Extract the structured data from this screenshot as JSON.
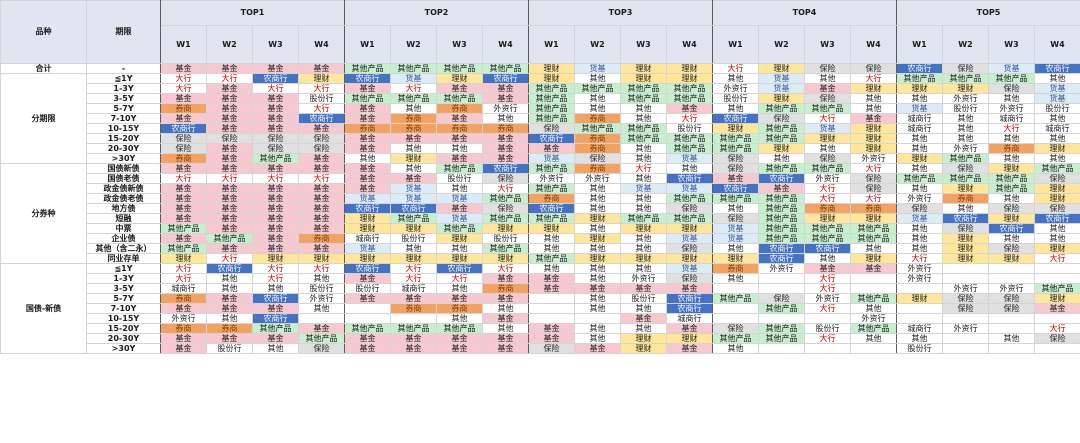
{
  "header": {
    "variety_label": "品种",
    "term_label": "期限",
    "top_labels": [
      "TOP1",
      "TOP2",
      "TOP3",
      "TOP4",
      "TOP5"
    ],
    "week_labels": [
      "W1",
      "W2",
      "W3",
      "W4"
    ]
  },
  "colors": {
    "基金": "#f7c8d0",
    "大行": "#ffffff",
    "农商行": "#4472c4",
    "理财": "#ffe699",
    "其他产品": "#c6efce",
    "货基": "#ddebf7",
    "券商": "#f4a261",
    "保险": "#e0e0e0",
    "其他": "#ffffff",
    "股份行": "#ffffff",
    "城商行": "#ffffff",
    "外资行": "#ffffff"
  },
  "text_colors": {
    "大行": "#c00000",
    "农商行": "#ffffff",
    "货基": "#2f5597",
    "券商": "#7a3b00"
  },
  "groups": [
    {
      "label": "合计",
      "rows": [
        {
          "term": "-",
          "cells": [
            "基金",
            "基金",
            "基金",
            "基金",
            "其他产品",
            "其他产品",
            "其他产品",
            "其他产品",
            "理财",
            "货基",
            "理财",
            "理财",
            "大行",
            "理财",
            "保险",
            "保险",
            "农商行",
            "保险",
            "货基",
            "农商行"
          ]
        }
      ]
    },
    {
      "label": "分期限",
      "rows": [
        {
          "term": "≦1Y",
          "cells": [
            "大行",
            "大行",
            "农商行",
            "理财",
            "农商行",
            "货基",
            "理财",
            "农商行",
            "理财",
            "其他",
            "理财",
            "理财",
            "其他",
            "货基",
            "其他",
            "大行",
            "其他产品",
            "其他产品",
            "其他产品",
            "其他"
          ]
        },
        {
          "term": "1-3Y",
          "cells": [
            "大行",
            "基金",
            "大行",
            "大行",
            "基金",
            "大行",
            "基金",
            "基金",
            "其他产品",
            "其他产品",
            "其他产品",
            "其他产品",
            "外资行",
            "货基",
            "基金",
            "理财",
            "理财",
            "理财",
            "保险",
            "货基"
          ]
        },
        {
          "term": "3-5Y",
          "cells": [
            "基金",
            "基金",
            "基金",
            "股份行",
            "其他产品",
            "其他产品",
            "其他产品",
            "基金",
            "其他产品",
            "其他",
            "其他产品",
            "其他产品",
            "股份行",
            "理财",
            "保险",
            "其他",
            "其他",
            "外资行",
            "其他",
            "货基"
          ]
        },
        {
          "term": "5-7Y",
          "cells": [
            "券商",
            "基金",
            "基金",
            "大行",
            "基金",
            "其他",
            "券商",
            "外资行",
            "其他产品",
            "其他",
            "其他",
            "基金",
            "其他",
            "其他产品",
            "其他产品",
            "其他",
            "货基",
            "股份行",
            "外资行",
            "股份行"
          ]
        },
        {
          "term": "7-10Y",
          "cells": [
            "基金",
            "基金",
            "基金",
            "农商行",
            "基金",
            "券商",
            "基金",
            "其他",
            "其他产品",
            "券商",
            "其他",
            "大行",
            "农商行",
            "保险",
            "大行",
            "基金",
            "城商行",
            "其他",
            "城商行",
            "其他"
          ]
        },
        {
          "term": "10-15Y",
          "cells": [
            "农商行",
            "基金",
            "基金",
            "基金",
            "券商",
            "券商",
            "券商",
            "券商",
            "保险",
            "其他产品",
            "其他产品",
            "股份行",
            "理财",
            "其他产品",
            "货基",
            "理财",
            "城商行",
            "其他",
            "大行",
            "城商行"
          ]
        },
        {
          "term": "15-20Y",
          "cells": [
            "保险",
            "保险",
            "保险",
            "保险",
            "基金",
            "基金",
            "基金",
            "基金",
            "农商行",
            "券商",
            "其他产品",
            "其他产品",
            "其他产品",
            "其他产品",
            "理财",
            "理财",
            "其他",
            "其他",
            "其他",
            "其他"
          ]
        },
        {
          "term": "20-30Y",
          "cells": [
            "保险",
            "基金",
            "保险",
            "保险",
            "基金",
            "其他",
            "其他",
            "基金",
            "基金",
            "券商",
            "其他",
            "其他产品",
            "其他产品",
            "理财",
            "其他",
            "理财",
            "其他",
            "外资行",
            "券商",
            "理财"
          ]
        },
        {
          "term": ">30Y",
          "cells": [
            "券商",
            "基金",
            "其他产品",
            "基金",
            "其他",
            "理财",
            "基金",
            "基金",
            "货基",
            "保险",
            "其他",
            "货基",
            "保险",
            "其他",
            "保险",
            "外资行",
            "理财",
            "其他产品",
            "其他",
            "其他"
          ]
        }
      ]
    },
    {
      "label": "分券种",
      "rows": [
        {
          "term": "国债新债",
          "cells": [
            "基金",
            "基金",
            "基金",
            "基金",
            "基金",
            "其他",
            "其他产品",
            "农商行",
            "其他产品",
            "券商",
            "大行",
            "其他",
            "保险",
            "其他产品",
            "其他产品",
            "大行",
            "其他",
            "保险",
            "理财",
            "其他产品"
          ]
        },
        {
          "term": "国债老债",
          "cells": [
            "大行",
            "大行",
            "大行",
            "大行",
            "基金",
            "基金",
            "股份行",
            "保险",
            "外资行",
            "外资行",
            "其他",
            "农商行",
            "基金",
            "农商行",
            "外资行",
            "保险",
            "其他产品",
            "其他产品",
            "其他产品",
            "保险"
          ]
        },
        {
          "term": "政金债新债",
          "cells": [
            "基金",
            "基金",
            "基金",
            "基金",
            "基金",
            "货基",
            "其他",
            "大行",
            "其他产品",
            "其他",
            "货基",
            "货基",
            "农商行",
            "基金",
            "大行",
            "保险",
            "其他",
            "理财",
            "其他产品",
            "理财"
          ]
        },
        {
          "term": "政金债老债",
          "cells": [
            "基金",
            "基金",
            "基金",
            "基金",
            "货基",
            "货基",
            "货基",
            "其他产品",
            "券商",
            "其他",
            "其他",
            "其他产品",
            "其他产品",
            "其他产品",
            "大行",
            "大行",
            "外资行",
            "券商",
            "其他",
            "理财"
          ]
        },
        {
          "term": "地方债",
          "cells": [
            "基金",
            "基金",
            "基金",
            "基金",
            "农商行",
            "农商行",
            "基金",
            "保险",
            "农商行",
            "其他",
            "其他",
            "保险",
            "其他",
            "其他产品",
            "券商",
            "券商",
            "保险",
            "其他",
            "保险",
            "保险"
          ]
        },
        {
          "term": "短融",
          "cells": [
            "基金",
            "基金",
            "基金",
            "基金",
            "理财",
            "其他产品",
            "货基",
            "其他产品",
            "其他产品",
            "理财",
            "其他产品",
            "其他产品",
            "保险",
            "其他产品",
            "理财",
            "理财",
            "货基",
            "农商行",
            "理财",
            "农商行"
          ]
        },
        {
          "term": "中票",
          "cells": [
            "其他产品",
            "基金",
            "基金",
            "基金",
            "理财",
            "理财",
            "其他产品",
            "理财",
            "理财",
            "其他",
            "理财",
            "理财",
            "货基",
            "其他产品",
            "其他产品",
            "其他产品",
            "其他",
            "保险",
            "农商行",
            "其他"
          ]
        },
        {
          "term": "企业债",
          "cells": [
            "基金",
            "其他产品",
            "基金",
            "券商",
            "城商行",
            "股份行",
            "理财",
            "股份行",
            "其他",
            "理财",
            "其他",
            "货基",
            "货基",
            "其他产品",
            "其他产品",
            "其他产品",
            "其他",
            "理财",
            "其他",
            "其他"
          ]
        },
        {
          "term": "其他（含二永）",
          "cells": [
            "其他产品",
            "基金",
            "基金",
            "基金",
            "货基",
            "其他",
            "其他",
            "其他产品",
            "其他",
            "其他",
            "其他",
            "保险",
            "其他",
            "农商行",
            "农商行",
            "其他",
            "其他",
            "理财",
            "保险",
            "理财"
          ]
        },
        {
          "term": "同业存单",
          "cells": [
            "理财",
            "大行",
            "理财",
            "理财",
            "理财",
            "理财",
            "理财",
            "理财",
            "其他产品",
            "理财",
            "理财",
            "理财",
            "理财",
            "农商行",
            "其他",
            "理财",
            "大行",
            "理财",
            "理财",
            "大行"
          ]
        }
      ]
    },
    {
      "label": "国债-新债",
      "rows": [
        {
          "term": "≦1Y",
          "cells": [
            "大行",
            "农商行",
            "大行",
            "大行",
            "农商行",
            "大行",
            "农商行",
            "大行",
            "其他",
            "其他",
            "其他",
            "货基",
            "券商",
            "外资行",
            "基金",
            "基金",
            "外资行",
            "",
            "",
            ""
          ]
        },
        {
          "term": "1-3Y",
          "cells": [
            "大行",
            "其他",
            "大行",
            "其他",
            "基金",
            "大行",
            "大行",
            "基金",
            "基金",
            "其他",
            "外资行",
            "保险",
            "其他",
            "",
            "大行",
            "",
            "外资行",
            "",
            "",
            ""
          ]
        },
        {
          "term": "3-5Y",
          "cells": [
            "城商行",
            "其他",
            "其他",
            "股份行",
            "股份行",
            "城商行",
            "其他",
            "券商",
            "基金",
            "基金",
            "基金",
            "基金",
            "",
            "",
            "大行",
            "",
            "",
            "外资行",
            "外资行",
            "其他产品"
          ]
        },
        {
          "term": "5-7Y",
          "cells": [
            "券商",
            "基金",
            "农商行",
            "外资行",
            "基金",
            "基金",
            "基金",
            "基金",
            "",
            "其他",
            "股份行",
            "农商行",
            "其他产品",
            "保险",
            "外资行",
            "其他产品",
            "理财",
            "保险",
            "保险",
            "理财"
          ]
        },
        {
          "term": "7-10Y",
          "cells": [
            "基金",
            "基金",
            "基金",
            "其他",
            "",
            "券商",
            "券商",
            "其他",
            "",
            "其他",
            "其他",
            "农商行",
            "",
            "其他产品",
            "大行",
            "其他",
            "",
            "保险",
            "保险",
            "基金"
          ]
        },
        {
          "term": "10-15Y",
          "cells": [
            "外资行",
            "其他",
            "农商行",
            "",
            "",
            "",
            "其他",
            "基金",
            "",
            "",
            "基金",
            "城商行",
            "",
            "",
            "",
            "外资行",
            "",
            "",
            "",
            ""
          ]
        },
        {
          "term": "15-20Y",
          "cells": [
            "券商",
            "券商",
            "其他产品",
            "基金",
            "其他产品",
            "其他产品",
            "其他产品",
            "其他",
            "基金",
            "其他",
            "其他",
            "基金",
            "保险",
            "其他产品",
            "股份行",
            "其他产品",
            "城商行",
            "外资行",
            "",
            "大行"
          ]
        },
        {
          "term": "20-30Y",
          "cells": [
            "基金",
            "基金",
            "基金",
            "其他产品",
            "基金",
            "基金",
            "基金",
            "基金",
            "基金",
            "其他",
            "理财",
            "理财",
            "其他产品",
            "其他产品",
            "大行",
            "其他",
            "其他",
            "",
            "其他",
            "保险"
          ]
        },
        {
          "term": ">30Y",
          "cells": [
            "基金",
            "股份行",
            "其他",
            "保险",
            "基金",
            "基金",
            "基金",
            "基金",
            "保险",
            "基金",
            "理财",
            "基金",
            "其他",
            "",
            "",
            "",
            "股份行",
            "",
            "",
            ""
          ]
        }
      ]
    }
  ]
}
